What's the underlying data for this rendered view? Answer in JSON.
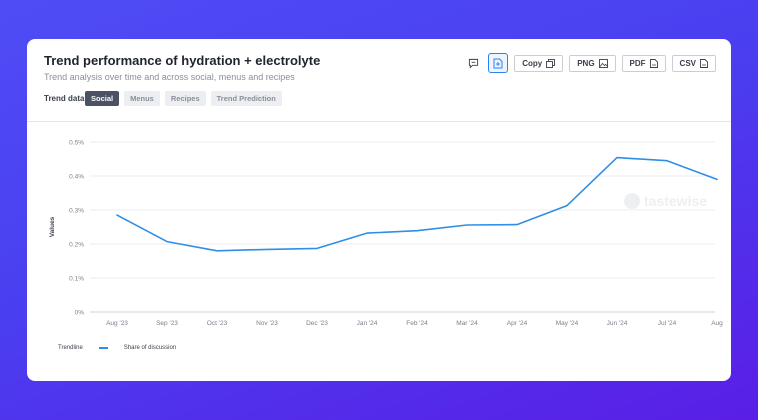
{
  "header": {
    "title": "Trend performance of hydration + electrolyte",
    "subtitle": "Trend analysis over time and across social, menus and recipes",
    "trend_data_label": "Trend data",
    "tabs": [
      {
        "label": "Social",
        "active": true
      },
      {
        "label": "Menus",
        "active": false
      },
      {
        "label": "Recipes",
        "active": false
      },
      {
        "label": "Trend Prediction",
        "active": false
      }
    ]
  },
  "actions": {
    "comment_icon": "comment-icon",
    "save_icon": "save-icon",
    "copy_label": "Copy",
    "png_label": "PNG",
    "pdf_label": "PDF",
    "csv_label": "CSV"
  },
  "legend": {
    "trendline_label": "Trendline",
    "series_label": "Share of discussion"
  },
  "watermark": "tastewise",
  "chart_data": {
    "type": "line",
    "title": "Trend performance of hydration + electrolyte",
    "subtitle": "Trend analysis over time and across social, menus and recipes",
    "xlabel": "",
    "ylabel": "Values",
    "x": [
      "Aug '23",
      "Sep '23",
      "Oct '23",
      "Nov '23",
      "Dec '23",
      "Jan '24",
      "Feb '24",
      "Mar '24",
      "Apr '24",
      "May '24",
      "Jun '24",
      "Jul '24",
      "Aug"
    ],
    "y_ticks": [
      "0%",
      "0.1%",
      "0.2%",
      "0.3%",
      "0.4%",
      "0.5%"
    ],
    "ylim": [
      0,
      0.5
    ],
    "grid": true,
    "legend_position": "bottom-left",
    "series": [
      {
        "name": "Share of discussion",
        "color": "#2f8fe6",
        "values": [
          0.285,
          0.207,
          0.18,
          0.184,
          0.187,
          0.232,
          0.239,
          0.256,
          0.257,
          0.313,
          0.454,
          0.445,
          0.39
        ]
      }
    ]
  }
}
